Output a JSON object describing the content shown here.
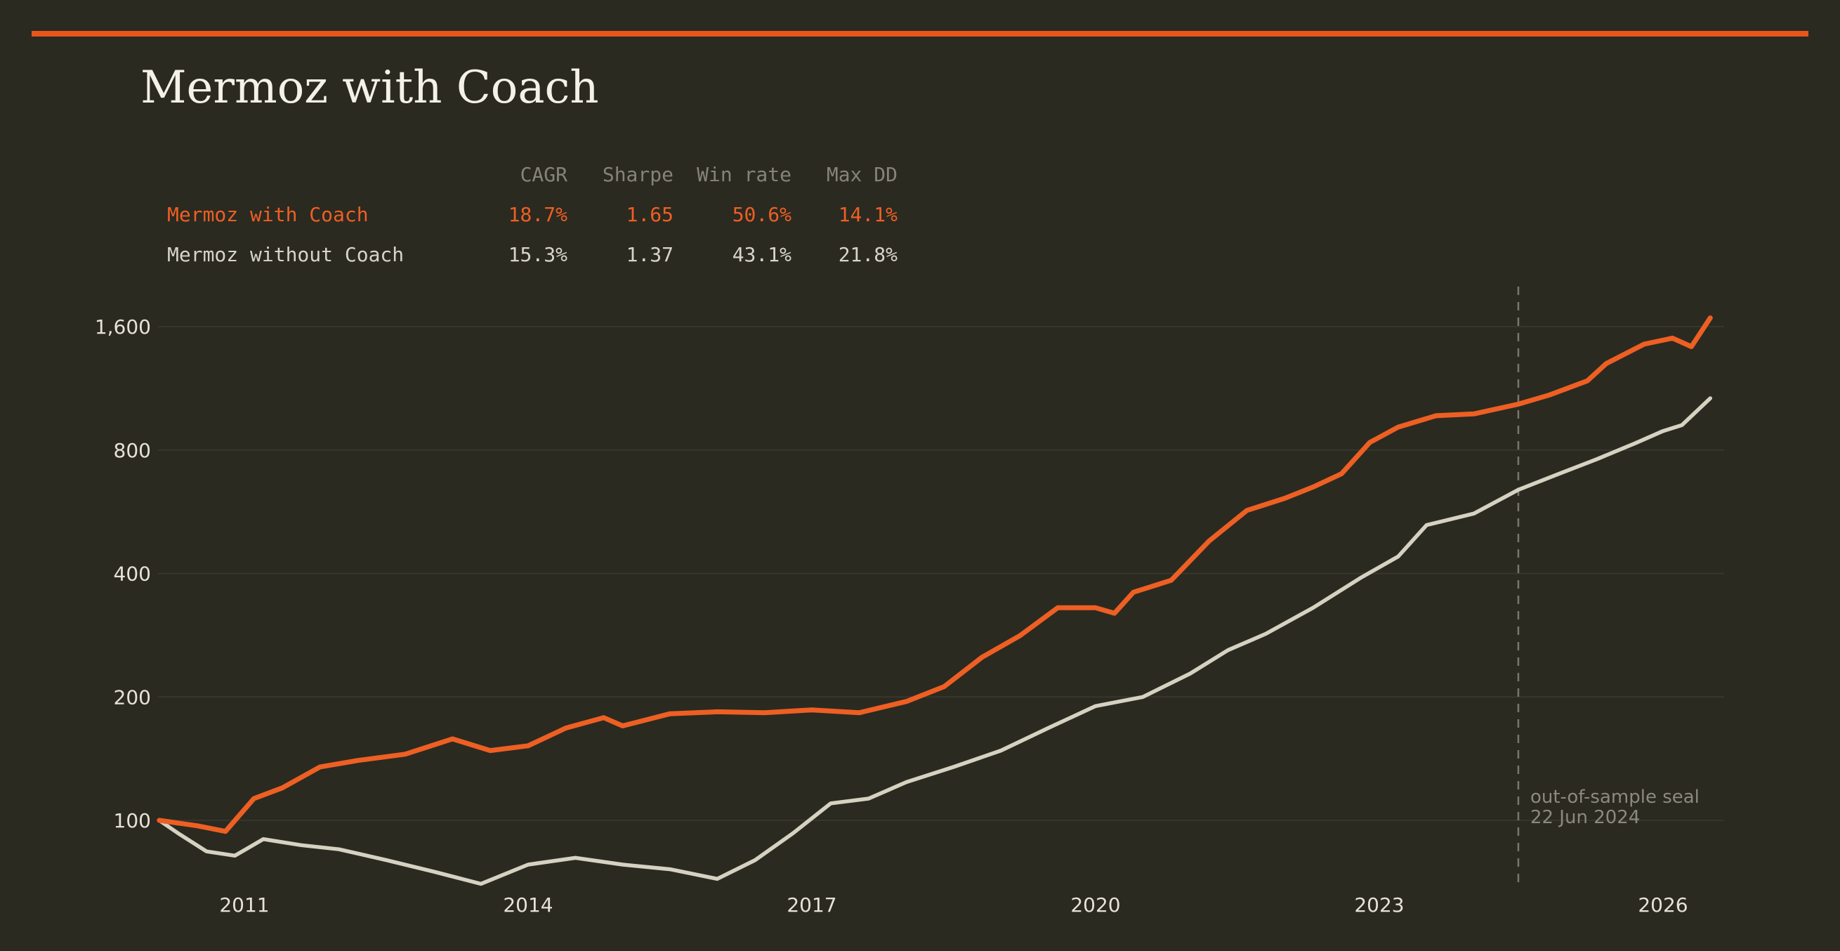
{
  "title": "Mermoz with Coach",
  "stats_table": {
    "headers": [
      "CAGR",
      "Sharpe",
      "Win rate",
      "Max DD"
    ],
    "rows": [
      {
        "name": "Mermoz with Coach",
        "values": [
          "18.7%",
          "1.65",
          "50.6%",
          "14.1%"
        ],
        "color": "#ee5f23"
      },
      {
        "name": "Mermoz without Coach",
        "values": [
          "15.3%",
          "1.37",
          "43.1%",
          "21.8%"
        ],
        "color": "#d8d4c8"
      }
    ]
  },
  "annotation": {
    "line1": "out-of-sample seal",
    "line2": "22 Jun 2024",
    "date": 2024.47
  },
  "colors": {
    "background": "#2a2a21",
    "accent": "#e8561c",
    "series_coach": "#ee5f23",
    "series_nocoach": "#d6d2c2",
    "grid": "#3a3a30"
  },
  "chart_data": {
    "type": "line",
    "title": "Mermoz with Coach",
    "xlabel": "",
    "ylabel": "",
    "yscale": "log",
    "xlim": [
      2010.1,
      2026.7
    ],
    "ylim": [
      65,
      1900
    ],
    "y_ticks": [
      100,
      200,
      400,
      800,
      1600
    ],
    "y_tick_labels": [
      "100",
      "200",
      "400",
      "800",
      "1,600"
    ],
    "x_ticks": [
      2011,
      2014,
      2017,
      2020,
      2023,
      2026
    ],
    "x_tick_labels": [
      "2011",
      "2014",
      "2017",
      "2020",
      "2023",
      "2026"
    ],
    "grid": true,
    "series": [
      {
        "name": "Mermoz with Coach",
        "x": [
          2010.1,
          2010.5,
          2010.8,
          2011.1,
          2011.4,
          2011.8,
          2012.2,
          2012.7,
          2013.2,
          2013.6,
          2014.0,
          2014.4,
          2014.8,
          2015.0,
          2015.5,
          2016.0,
          2016.5,
          2017.0,
          2017.5,
          2018.0,
          2018.4,
          2018.8,
          2019.2,
          2019.6,
          2020.0,
          2020.2,
          2020.4,
          2020.8,
          2021.2,
          2021.6,
          2022.0,
          2022.3,
          2022.6,
          2022.9,
          2023.2,
          2023.6,
          2024.0,
          2024.47,
          2024.8,
          2025.2,
          2025.4,
          2025.8,
          2026.1,
          2026.3,
          2026.5
        ],
        "y": [
          100,
          97,
          94,
          113,
          120,
          135,
          140,
          145,
          158,
          148,
          152,
          168,
          178,
          170,
          182,
          184,
          183,
          186,
          183,
          195,
          212,
          250,
          282,
          330,
          330,
          320,
          360,
          385,
          480,
          570,
          610,
          650,
          700,
          835,
          910,
          970,
          980,
          1035,
          1090,
          1180,
          1300,
          1450,
          1500,
          1430,
          1680
        ]
      },
      {
        "name": "Mermoz without Coach",
        "x": [
          2010.1,
          2010.3,
          2010.6,
          2010.9,
          2011.2,
          2011.6,
          2012.0,
          2012.5,
          2013.0,
          2013.5,
          2014.0,
          2014.5,
          2015.0,
          2015.5,
          2016.0,
          2016.4,
          2016.8,
          2017.2,
          2017.6,
          2018.0,
          2018.5,
          2019.0,
          2019.5,
          2020.0,
          2020.5,
          2021.0,
          2021.4,
          2021.8,
          2022.3,
          2022.8,
          2023.2,
          2023.5,
          2024.0,
          2024.47,
          2024.9,
          2025.3,
          2025.7,
          2026.0,
          2026.2,
          2026.5
        ],
        "y": [
          100,
          93,
          84,
          82,
          90,
          87,
          85,
          80,
          75,
          70,
          78,
          81,
          78,
          76,
          72,
          80,
          93,
          110,
          113,
          124,
          135,
          148,
          168,
          190,
          200,
          228,
          260,
          285,
          330,
          390,
          440,
          525,
          560,
          640,
          700,
          760,
          830,
          890,
          920,
          1070
        ]
      }
    ]
  }
}
